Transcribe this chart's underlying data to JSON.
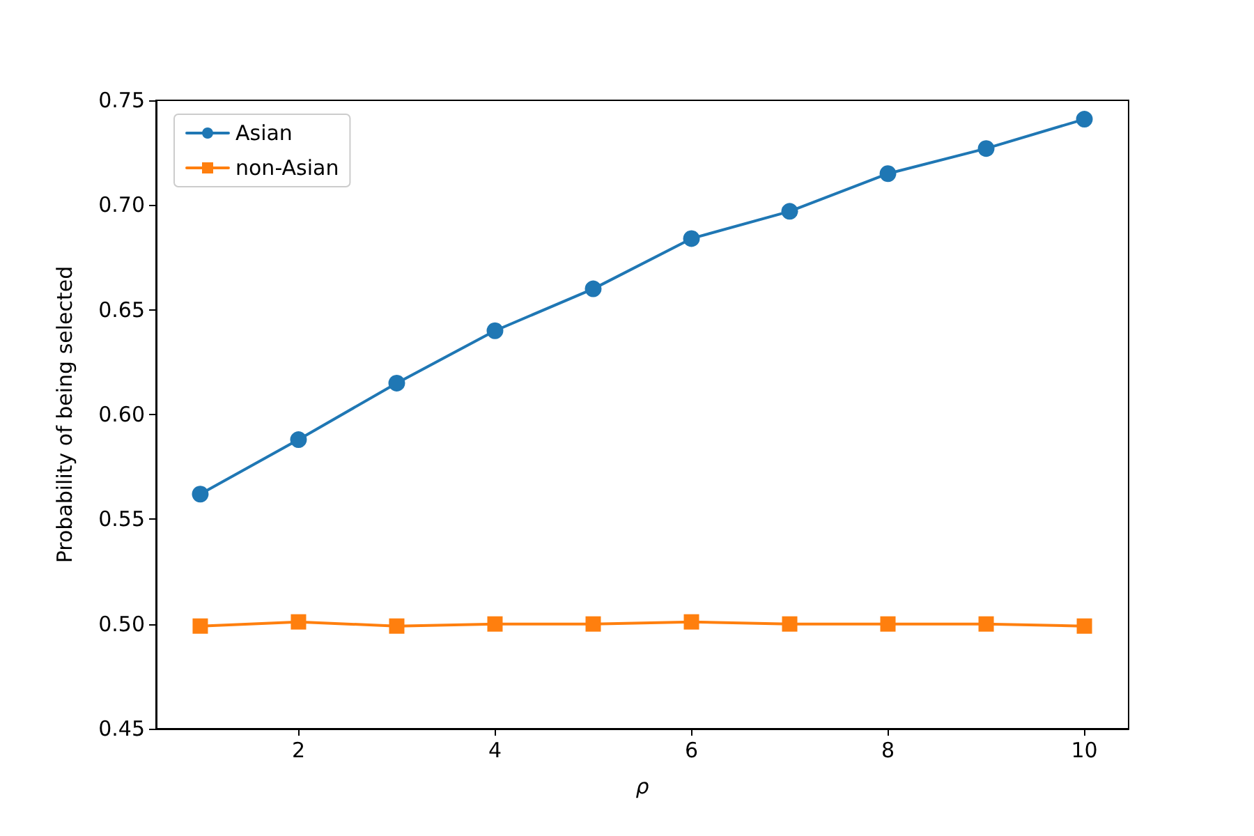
{
  "chart_data": {
    "type": "line",
    "xlabel": "ρ",
    "ylabel": "Probability of being selected",
    "x": [
      1,
      2,
      3,
      4,
      5,
      6,
      7,
      8,
      9,
      10
    ],
    "series": [
      {
        "name": "Asian",
        "color": "#1f77b4",
        "marker": "circle",
        "values": [
          0.562,
          0.588,
          0.615,
          0.64,
          0.66,
          0.684,
          0.697,
          0.715,
          0.727,
          0.741
        ]
      },
      {
        "name": "non-Asian",
        "color": "#ff7f0e",
        "marker": "square",
        "values": [
          0.499,
          0.501,
          0.499,
          0.5,
          0.5,
          0.501,
          0.5,
          0.5,
          0.5,
          0.499
        ]
      }
    ],
    "xlim": [
      0.55,
      10.45
    ],
    "xticks": [
      2,
      4,
      6,
      8,
      10
    ],
    "ylim": [
      0.45,
      0.75
    ],
    "yticks": [
      0.45,
      {
        "value": 0.5,
        "label": "0.50"
      },
      0.55,
      {
        "value": 0.6,
        "label": "0.60"
      },
      0.65,
      {
        "value": 0.7,
        "label": "0.70"
      },
      0.75
    ],
    "grid": false,
    "legend": "top left",
    "line_style": "solid"
  }
}
